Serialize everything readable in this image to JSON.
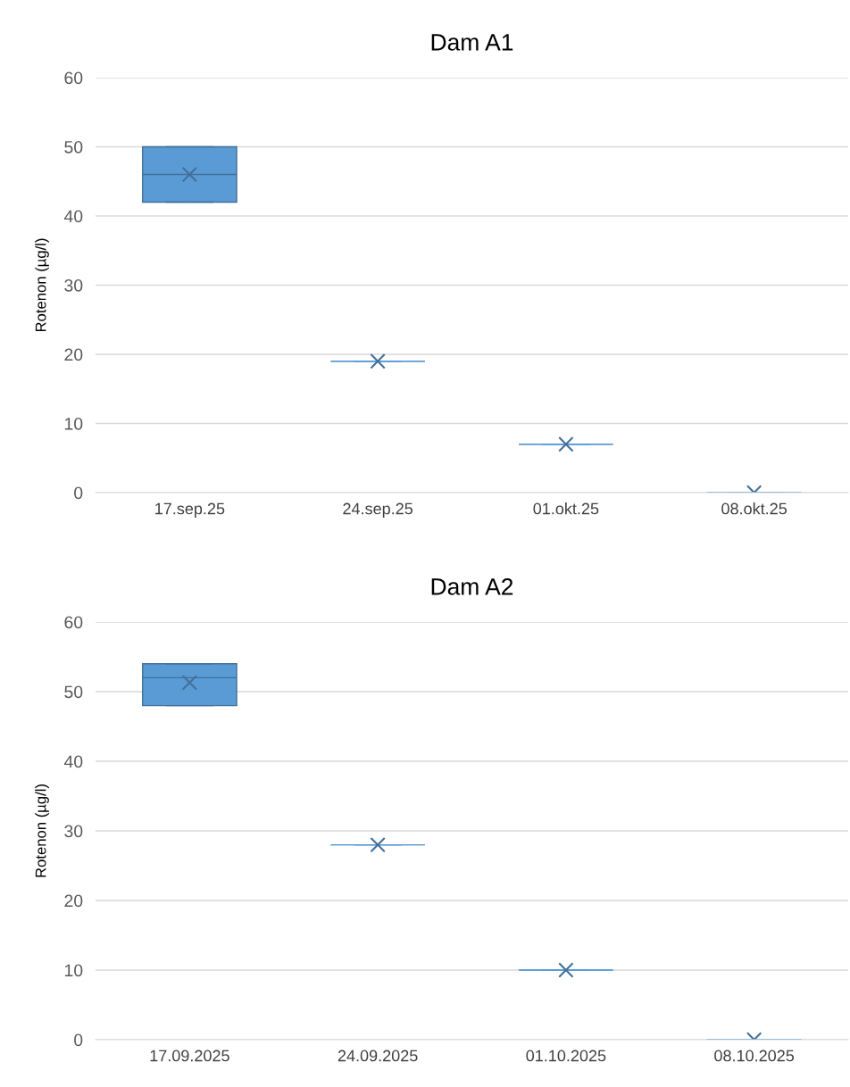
{
  "chart_data": [
    {
      "type": "box",
      "title": "Dam A1",
      "ylabel": "Rotenon (µg/l)",
      "categories": [
        "17.sep.25",
        "24.sep.25",
        "01.okt.25",
        "08.okt.25"
      ],
      "color": "#5b9bd5",
      "boxes": [
        {
          "low": 42,
          "q1": 42,
          "median": 46,
          "q3": 50,
          "high": 50,
          "mean": 46
        },
        {
          "low": 19,
          "q1": 19,
          "median": 19,
          "q3": 19,
          "high": 19,
          "mean": 19
        },
        {
          "low": 7,
          "q1": 7,
          "median": 7,
          "q3": 7,
          "high": 7,
          "mean": 7
        },
        {
          "low": 0,
          "q1": 0,
          "median": 0,
          "q3": 0,
          "high": 0,
          "mean": 0
        }
      ],
      "ylim": [
        0,
        60
      ],
      "yticks": [
        0,
        10,
        20,
        30,
        40,
        50,
        60
      ],
      "grid": "y",
      "marker": "cross",
      "legend": false
    },
    {
      "type": "box",
      "title": "Dam A2",
      "ylabel": "Rotenon (µg/l)",
      "categories": [
        "17.09.2025",
        "24.09.2025",
        "01.10.2025",
        "08.10.2025"
      ],
      "color": "#5b9bd5",
      "boxes": [
        {
          "low": 48,
          "q1": 48,
          "median": 52,
          "q3": 54,
          "high": 54,
          "mean": 51.3
        },
        {
          "low": 28,
          "q1": 28,
          "median": 28,
          "q3": 28,
          "high": 28,
          "mean": 28
        },
        {
          "low": 10,
          "q1": 10,
          "median": 10,
          "q3": 10,
          "high": 10,
          "mean": 10
        },
        {
          "low": 0,
          "q1": 0,
          "median": 0,
          "q3": 0,
          "high": 0,
          "mean": 0
        }
      ],
      "ylim": [
        0,
        60
      ],
      "yticks": [
        0,
        10,
        20,
        30,
        40,
        50,
        60
      ],
      "grid": "y",
      "marker": "cross",
      "legend": false
    }
  ]
}
